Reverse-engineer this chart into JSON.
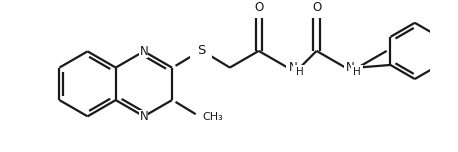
{
  "background_color": "#ffffff",
  "line_color": "#1a1a1a",
  "line_width": 1.6,
  "font_size": 8.5,
  "figsize": [
    4.58,
    1.52
  ],
  "dpi": 100,
  "xlim": [
    0,
    458
  ],
  "ylim": [
    0,
    152
  ]
}
